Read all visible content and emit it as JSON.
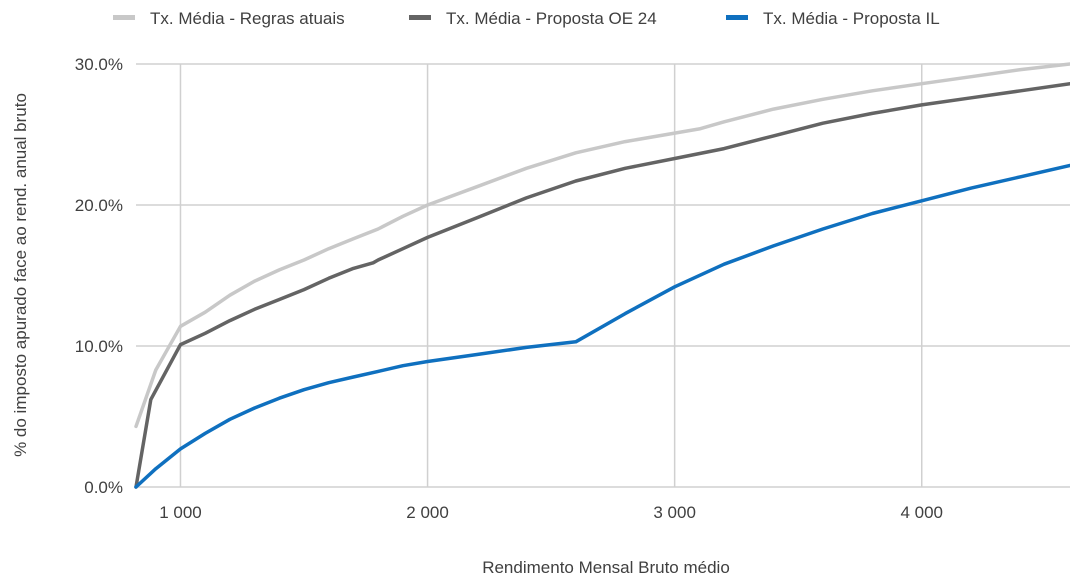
{
  "chart_data": {
    "type": "line",
    "title": "",
    "xlabel": "Rendimento Mensal Bruto médio",
    "ylabel": "% do imposto apurado face ao rend. anual bruto",
    "xlim": [
      820,
      4600
    ],
    "ylim": [
      0,
      30
    ],
    "grid": true,
    "legend_position": "top",
    "x_ticks": [
      {
        "value": 1000,
        "label": "1 000"
      },
      {
        "value": 2000,
        "label": "2 000"
      },
      {
        "value": 3000,
        "label": "3 000"
      },
      {
        "value": 4000,
        "label": "4 000"
      }
    ],
    "y_ticks": [
      {
        "value": 0,
        "label": "0.0%"
      },
      {
        "value": 10,
        "label": "10.0%"
      },
      {
        "value": 20,
        "label": "20.0%"
      },
      {
        "value": 30,
        "label": "30.0%"
      }
    ],
    "series": [
      {
        "name": "Tx. Média - Regras atuais",
        "color": "#c8c8c8",
        "x": [
          820,
          900,
          1000,
          1100,
          1200,
          1300,
          1400,
          1500,
          1600,
          1700,
          1800,
          1900,
          2000,
          2200,
          2400,
          2600,
          2800,
          3000,
          3100,
          3200,
          3400,
          3600,
          3800,
          4000,
          4200,
          4400,
          4600
        ],
        "y": [
          4.3,
          8.3,
          11.4,
          12.4,
          13.6,
          14.6,
          15.4,
          16.1,
          16.9,
          17.6,
          18.3,
          19.2,
          20.0,
          21.3,
          22.6,
          23.7,
          24.5,
          25.1,
          25.4,
          25.9,
          26.8,
          27.5,
          28.1,
          28.6,
          29.1,
          29.6,
          30.0
        ]
      },
      {
        "name": "Tx. Média - Proposta OE 24",
        "color": "#646464",
        "x": [
          820,
          880,
          1000,
          1100,
          1200,
          1300,
          1400,
          1500,
          1600,
          1700,
          1780,
          1800,
          1900,
          2000,
          2200,
          2400,
          2600,
          2800,
          3000,
          3200,
          3400,
          3600,
          3800,
          4000,
          4200,
          4400,
          4600
        ],
        "y": [
          0.0,
          6.2,
          10.1,
          10.9,
          11.8,
          12.6,
          13.3,
          14.0,
          14.8,
          15.5,
          15.9,
          16.1,
          16.9,
          17.7,
          19.1,
          20.5,
          21.7,
          22.6,
          23.3,
          24.0,
          24.9,
          25.8,
          26.5,
          27.1,
          27.6,
          28.1,
          28.6
        ]
      },
      {
        "name": "Tx. Média - Proposta IL",
        "color": "#0f70bf",
        "x": [
          820,
          900,
          1000,
          1100,
          1200,
          1300,
          1400,
          1500,
          1600,
          1700,
          1800,
          1900,
          2000,
          2200,
          2400,
          2600,
          2800,
          3000,
          3200,
          3400,
          3600,
          3800,
          4000,
          4200,
          4400,
          4600
        ],
        "y": [
          0.0,
          1.3,
          2.7,
          3.8,
          4.8,
          5.6,
          6.3,
          6.9,
          7.4,
          7.8,
          8.2,
          8.6,
          8.9,
          9.4,
          9.9,
          10.3,
          12.3,
          14.2,
          15.8,
          17.1,
          18.3,
          19.4,
          20.3,
          21.2,
          22.0,
          22.8
        ]
      }
    ]
  }
}
